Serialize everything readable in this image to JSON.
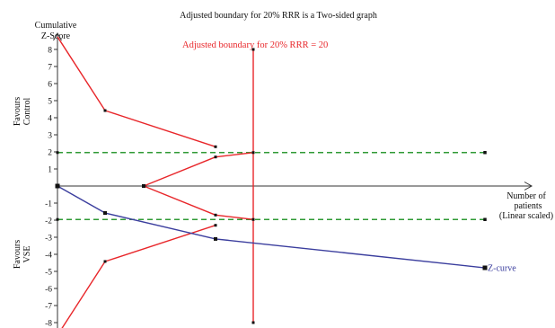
{
  "chart_data": {
    "type": "line",
    "title": "Adjusted boundary for 20% RRR is a Two-sided graph",
    "ylabel": [
      "Cumulative",
      "Z-Score"
    ],
    "xlabel": [
      "Number of",
      "patients",
      "(Linear scaled)"
    ],
    "x_scale": "linear",
    "ylim": [
      -8,
      8
    ],
    "yticks": [
      8,
      7,
      6,
      5,
      4,
      3,
      2,
      1,
      -1,
      -2,
      -3,
      -4,
      -5,
      -6,
      -7,
      -8
    ],
    "grid": false,
    "region_labels": {
      "upper": [
        "Favours",
        "Control"
      ],
      "lower": [
        "Favours",
        "VSE"
      ]
    },
    "information_size": {
      "label": "Adjusted boundary for 20% RRR = 20",
      "color": "#e8262a"
    },
    "conventional": {
      "values": [
        1.96,
        -1.96
      ],
      "color": "#2f9a35",
      "style": "dashed"
    },
    "series": {
      "z_curve": {
        "name": "Z-curve",
        "color": "#3b3e9e",
        "values": [
          0,
          -1.58,
          -3.1,
          -4.79
        ]
      },
      "upper_boundary": {
        "color": "#e8262a",
        "values": [
          8.74,
          4.42,
          2.3
        ]
      },
      "lower_boundary": {
        "color": "#e8262a",
        "values": [
          -8.74,
          -4.42,
          -2.3
        ]
      },
      "upper_futility": {
        "color": "#e8262a",
        "values": [
          0,
          1.7,
          1.96
        ]
      },
      "lower_futility": {
        "color": "#e8262a",
        "values": [
          0,
          -1.7,
          -1.96
        ]
      }
    },
    "marker_color": "#111111"
  }
}
